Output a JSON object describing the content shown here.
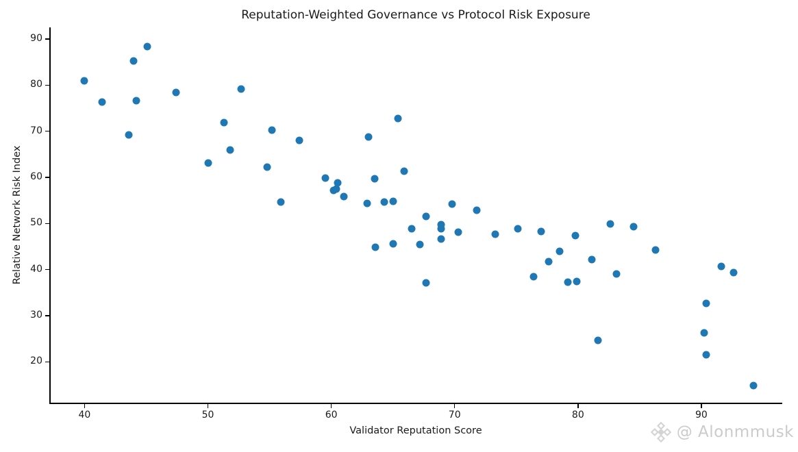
{
  "watermark": {
    "handle": "@ Alonmmusk",
    "icon": "binance-diamond-logo",
    "text_color": "#cbcbcb",
    "icon_color": "#d4d4d4"
  },
  "chart_data": {
    "type": "scatter",
    "title": "Reputation-Weighted Governance vs Protocol Risk Exposure",
    "xlabel": "Validator Reputation Score",
    "ylabel": "Relative Network Risk Index",
    "xlim": [
      37.2,
      96.5
    ],
    "ylim": [
      11.0,
      92.5
    ],
    "x_ticks": [
      40,
      50,
      60,
      70,
      80,
      90
    ],
    "y_ticks": [
      20,
      30,
      40,
      50,
      60,
      70,
      80,
      90
    ],
    "grid": false,
    "legend": null,
    "marker_color": "#1f77b4",
    "marker_diameter_px": 11,
    "points": [
      [
        40.0,
        80.9
      ],
      [
        41.4,
        76.3
      ],
      [
        43.6,
        69.2
      ],
      [
        44.0,
        85.3
      ],
      [
        44.2,
        76.6
      ],
      [
        45.1,
        88.4
      ],
      [
        47.4,
        78.4
      ],
      [
        50.0,
        63.1
      ],
      [
        51.3,
        71.9
      ],
      [
        51.8,
        66.0
      ],
      [
        52.7,
        79.2
      ],
      [
        54.8,
        62.2
      ],
      [
        55.2,
        70.2
      ],
      [
        55.9,
        54.6
      ],
      [
        57.4,
        68.0
      ],
      [
        59.5,
        59.9
      ],
      [
        60.2,
        57.1
      ],
      [
        60.4,
        57.4
      ],
      [
        60.5,
        58.8
      ],
      [
        61.0,
        55.8
      ],
      [
        62.9,
        54.3
      ],
      [
        63.0,
        68.7
      ],
      [
        63.5,
        59.7
      ],
      [
        63.6,
        44.8
      ],
      [
        64.3,
        54.7
      ],
      [
        65.0,
        54.8
      ],
      [
        65.0,
        45.6
      ],
      [
        65.4,
        72.8
      ],
      [
        65.9,
        61.3
      ],
      [
        66.5,
        48.9
      ],
      [
        67.2,
        45.5
      ],
      [
        67.7,
        51.5
      ],
      [
        67.7,
        37.2
      ],
      [
        68.9,
        49.7
      ],
      [
        68.9,
        48.8
      ],
      [
        68.9,
        46.7
      ],
      [
        69.8,
        54.2
      ],
      [
        70.3,
        48.1
      ],
      [
        71.8,
        52.8
      ],
      [
        73.3,
        47.7
      ],
      [
        75.1,
        48.9
      ],
      [
        76.4,
        38.5
      ],
      [
        77.0,
        48.3
      ],
      [
        77.6,
        41.7
      ],
      [
        78.5,
        43.9
      ],
      [
        79.2,
        37.3
      ],
      [
        79.8,
        47.3
      ],
      [
        79.9,
        37.4
      ],
      [
        81.1,
        42.2
      ],
      [
        81.6,
        24.6
      ],
      [
        82.6,
        49.9
      ],
      [
        83.1,
        39.0
      ],
      [
        84.5,
        49.3
      ],
      [
        86.3,
        44.2
      ],
      [
        90.2,
        26.3
      ],
      [
        90.4,
        32.6
      ],
      [
        90.4,
        21.6
      ],
      [
        91.6,
        40.7
      ],
      [
        92.6,
        39.3
      ],
      [
        94.2,
        14.8
      ]
    ]
  }
}
